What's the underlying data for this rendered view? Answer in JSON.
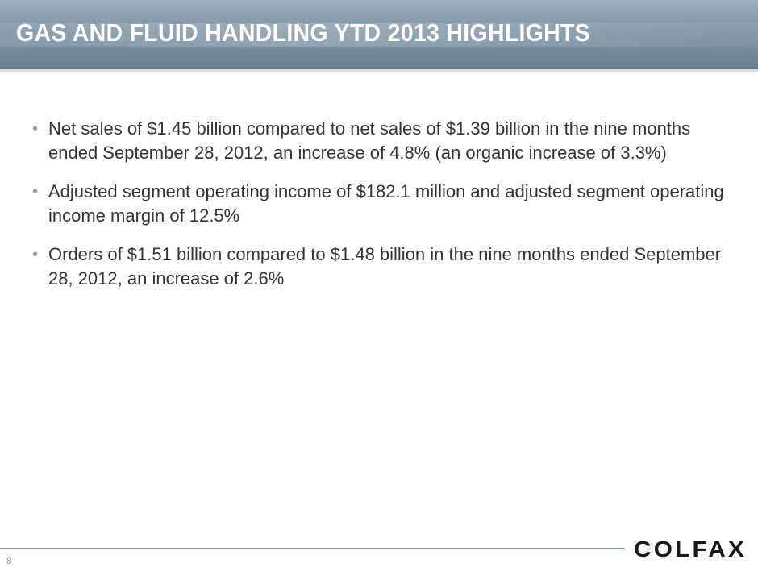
{
  "slide": {
    "title": "GAS AND FLUID HANDLING YTD 2013 HIGHLIGHTS",
    "bullets": [
      "Net sales of $1.45 billion compared to net sales of $1.39 billion in the nine months ended September 28, 2012, an increase of 4.8% (an organic increase of 3.3%)",
      "Adjusted segment operating income of $182.1 million and adjusted segment operating income margin of 12.5%",
      "Orders of $1.51 billion compared to $1.48 billion in the nine months ended September 28, 2012, an increase of 2.6%"
    ],
    "bullet_symbol": "•",
    "page_number": "8",
    "logo_text": "COLFAX"
  },
  "colors": {
    "header": "#7d93a4",
    "bullet": "#8da3b6",
    "text": "#333333",
    "logo": "#1a1a1a"
  }
}
